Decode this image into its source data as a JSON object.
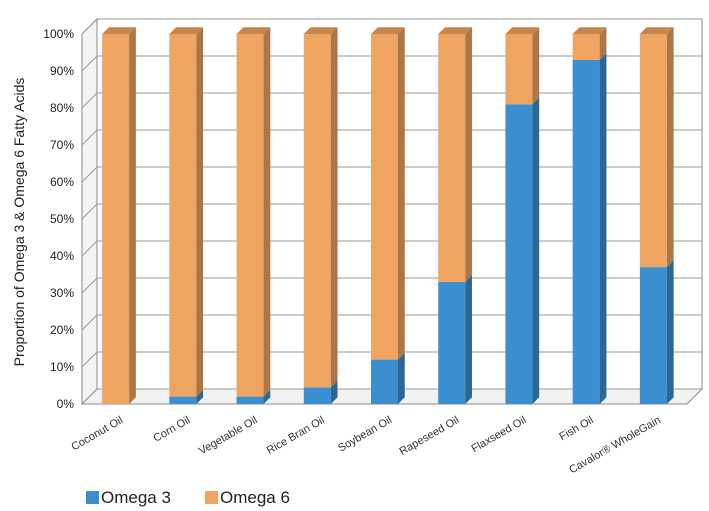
{
  "chart_data": {
    "type": "bar",
    "stacked": true,
    "three_d": true,
    "title": "",
    "xlabel": "",
    "ylabel": "Proportion of Omega 3 & Omega 6 Fatty Acids",
    "ylim": [
      0,
      100
    ],
    "yticks": [
      "0%",
      "10%",
      "20%",
      "30%",
      "40%",
      "50%",
      "60%",
      "70%",
      "80%",
      "90%",
      "100%"
    ],
    "grid": true,
    "legend_position": "bottom-left",
    "categories": [
      "Coconut Oil",
      "Corn Oil",
      "Vegetable Oil",
      "Rice Bran Oil",
      "Soybean Oil",
      "Rapeseed Oil",
      "Flaxseed Oil",
      "Fish Oil",
      "Cavalor® WholeGain"
    ],
    "series": [
      {
        "name": "Omega 3",
        "color": "#3b8fd0",
        "values": [
          0,
          2,
          2,
          4.5,
          12,
          33,
          81,
          93,
          37
        ]
      },
      {
        "name": "Omega 6",
        "color": "#f0a462",
        "values": [
          100,
          98,
          98,
          95.5,
          88,
          67,
          19,
          7,
          63
        ]
      }
    ]
  }
}
